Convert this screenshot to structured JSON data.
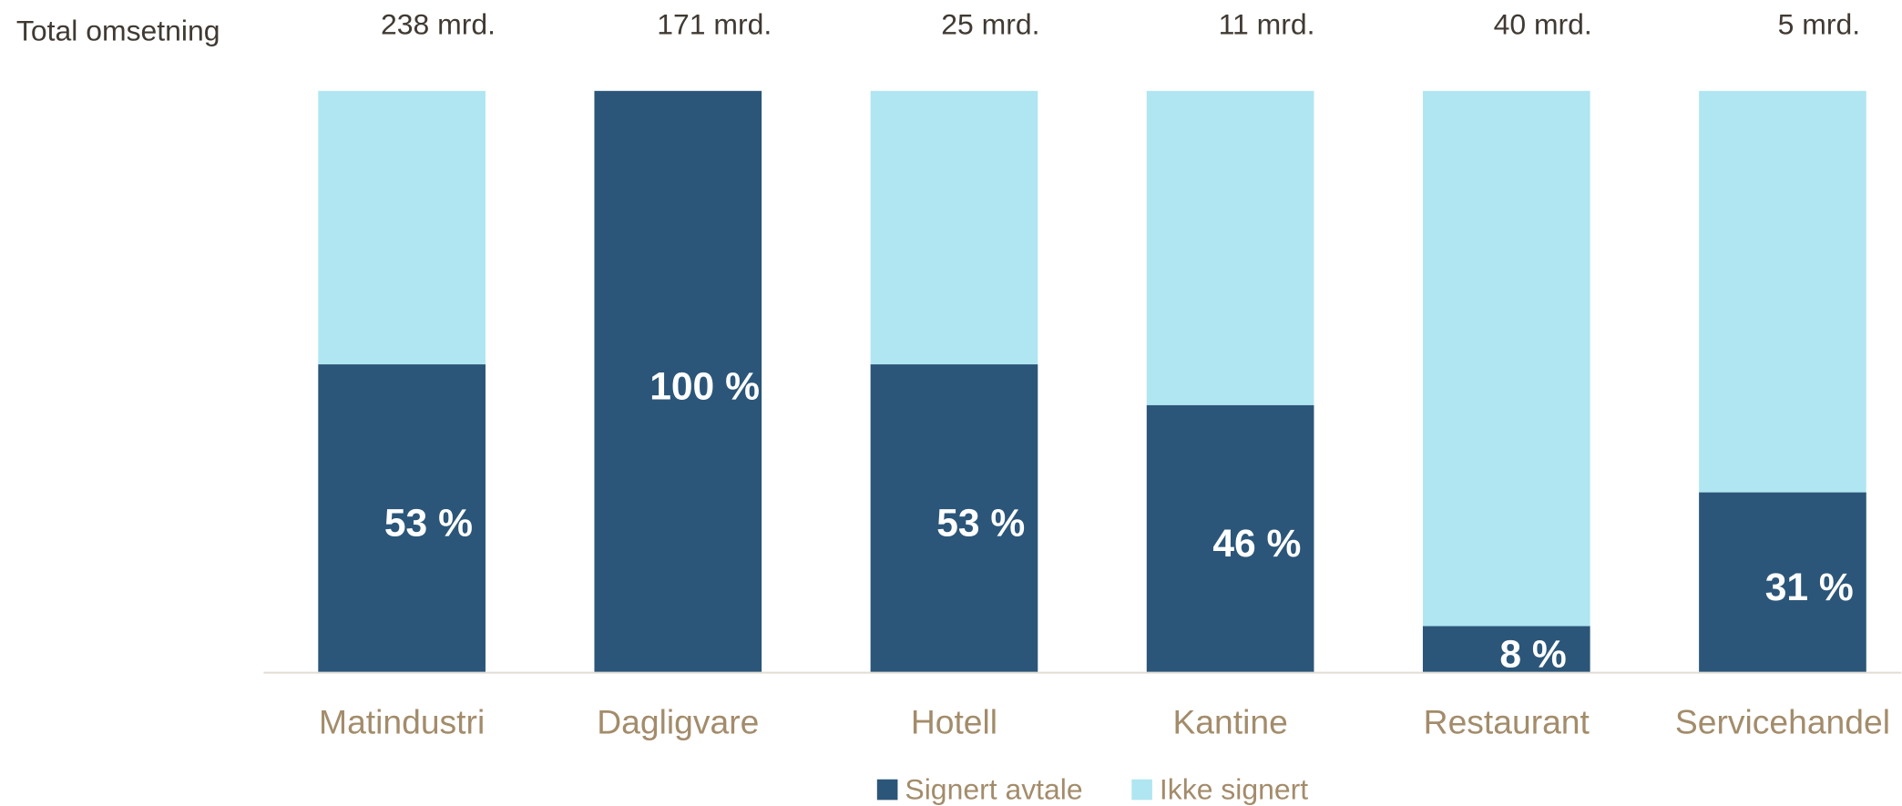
{
  "chart_data": {
    "type": "stacked_bar",
    "row_label": "Total omsetning",
    "top_labels": [
      "238 mrd.",
      "171 mrd.",
      "25 mrd.",
      "11 mrd.",
      "40 mrd.",
      "5 mrd."
    ],
    "categories": [
      "Matindustri",
      "Dagligvare",
      "Hotell",
      "Kantine",
      "Restaurant",
      "Servicehandel"
    ],
    "series": [
      {
        "name": "Signert avtale",
        "color": "#2b5679",
        "values": [
          53,
          100,
          53,
          46,
          8,
          31
        ],
        "value_labels": [
          "53 %",
          "100 %",
          "53 %",
          "46 %",
          "8 %",
          "31 %"
        ]
      },
      {
        "name": "Ikke signert",
        "color": "#b0e6f1",
        "values": [
          47,
          0,
          47,
          54,
          92,
          69
        ]
      }
    ],
    "ylim": [
      0,
      100
    ],
    "legend": "bottom"
  }
}
